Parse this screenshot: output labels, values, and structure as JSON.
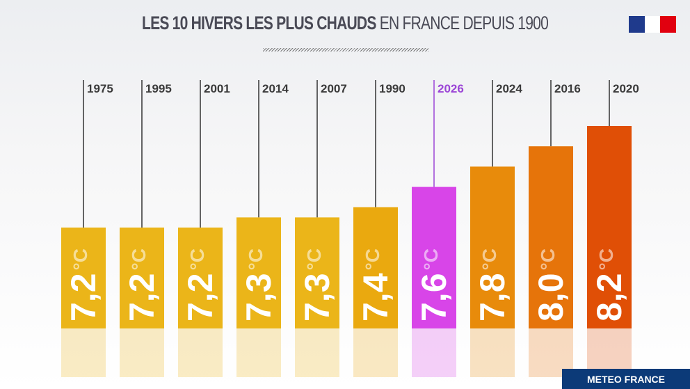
{
  "title": {
    "bold": "LES 10 HIVERS LES PLUS CHAUDS",
    "light": "EN FRANCE DEPUIS 1900"
  },
  "footer": "METEO FRANCE",
  "logo": "republique-francaise-flag-logo",
  "chart_data": {
    "type": "bar",
    "title": "LES 10 HIVERS LES PLUS CHAUDS EN FRANCE DEPUIS 1900",
    "unit": "°C",
    "categories": [
      "1975",
      "1995",
      "2001",
      "2014",
      "2007",
      "1990",
      "2026",
      "2024",
      "2016",
      "2020"
    ],
    "values": [
      7.2,
      7.2,
      7.2,
      7.3,
      7.3,
      7.4,
      7.6,
      7.8,
      8.0,
      8.2
    ],
    "labels": [
      "7,2",
      "7,2",
      "7,2",
      "7,3",
      "7,3",
      "7,4",
      "7,6",
      "7,8",
      "8,0",
      "8,2"
    ],
    "colors": [
      "#ebb519",
      "#ebb519",
      "#ebb519",
      "#ebb519",
      "#ebb519",
      "#eaa90f",
      "#d845e8",
      "#e88b0b",
      "#e6740a",
      "#e04f06"
    ],
    "highlight": "2026",
    "highlight_color": "#9b45d6",
    "grid": false
  }
}
